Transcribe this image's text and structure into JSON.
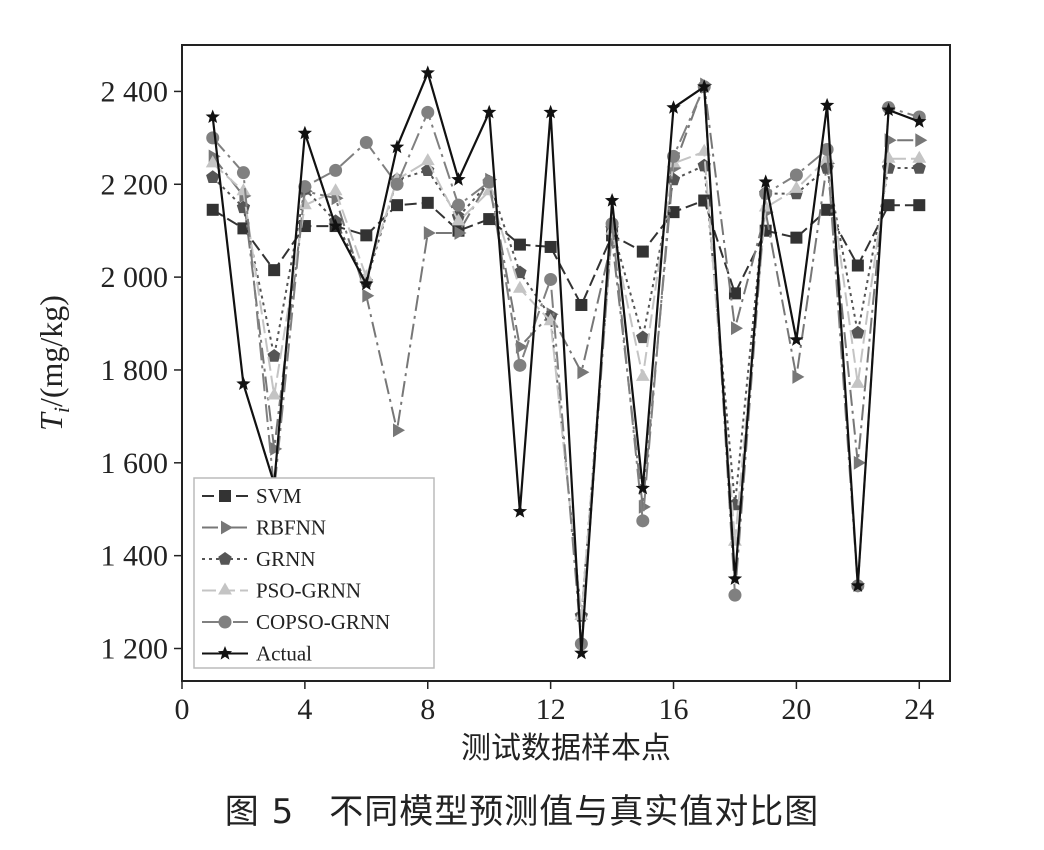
{
  "caption": "图 5　不同模型预测值与真实值对比图",
  "chart_data": {
    "type": "line",
    "title": "",
    "xlabel": "测试数据样本点",
    "ylabel": "Ti/(mg/kg)",
    "ylabel_main": "T",
    "ylabel_sub": "i",
    "ylabel_rest": "/(mg/kg)",
    "xlim": [
      0,
      25
    ],
    "ylim": [
      1130,
      2500
    ],
    "x_ticks": [
      0,
      4,
      8,
      12,
      16,
      20,
      24
    ],
    "x_tick_labels": [
      "0",
      "4",
      "8",
      "12",
      "16",
      "20",
      "24"
    ],
    "y_ticks": [
      1200,
      1400,
      1600,
      1800,
      2000,
      2200,
      2400
    ],
    "y_tick_labels": [
      "1 200",
      "1 400",
      "1 600",
      "1 800",
      "2 000",
      "2 200",
      "2 400"
    ],
    "legend_position": "bottom-left",
    "x": [
      1,
      2,
      3,
      4,
      5,
      6,
      7,
      8,
      9,
      10,
      11,
      12,
      13,
      14,
      15,
      16,
      17,
      18,
      19,
      20,
      21,
      22,
      23,
      24
    ],
    "series": [
      {
        "name": "SVM",
        "marker": "square",
        "dash": "12,5",
        "color": "#333333",
        "values": [
          2145,
          2105,
          2015,
          2110,
          2110,
          2090,
          2155,
          2160,
          2100,
          2125,
          2070,
          2065,
          1940,
          2090,
          2055,
          2140,
          2165,
          1965,
          2100,
          2085,
          2145,
          2025,
          2155,
          2155
        ]
      },
      {
        "name": "RBFNN",
        "marker": "triangle-right",
        "dash": "16,5,3,5",
        "color": "#777777",
        "values": [
          2260,
          2175,
          1630,
          2185,
          2170,
          1960,
          1670,
          2095,
          2095,
          2210,
          1850,
          1920,
          1795,
          2080,
          1505,
          2235,
          2415,
          1890,
          2140,
          1785,
          2245,
          1600,
          2295,
          2295
        ]
      },
      {
        "name": "GRNN",
        "marker": "pentagon",
        "dash": "3,4",
        "color": "#555555",
        "values": [
          2215,
          2150,
          1830,
          2190,
          2120,
          1990,
          2210,
          2230,
          2130,
          2205,
          2010,
          1915,
          1270,
          2105,
          1870,
          2210,
          2240,
          1510,
          2180,
          2180,
          2235,
          1880,
          2235,
          2235
        ]
      },
      {
        "name": "PSO-GRNN",
        "marker": "triangle-up",
        "dash": "14,5",
        "color": "#c4c4c4",
        "values": [
          2245,
          2185,
          1745,
          2155,
          2185,
          2000,
          2210,
          2250,
          2120,
          2185,
          1975,
          1905,
          1270,
          2100,
          1785,
          2245,
          2270,
          1430,
          2150,
          2190,
          2255,
          1770,
          2255,
          2255
        ]
      },
      {
        "name": "COPSO-GRNN",
        "marker": "circle",
        "dash": "18,5,3,5",
        "color": "#808080",
        "values": [
          2300,
          2225,
          1540,
          2195,
          2230,
          2290,
          2200,
          2355,
          2155,
          2205,
          1810,
          1995,
          1210,
          2115,
          1475,
          2260,
          2410,
          1315,
          2180,
          2220,
          2275,
          1335,
          2365,
          2345
        ]
      },
      {
        "name": "Actual",
        "marker": "star",
        "dash": "",
        "color": "#111111",
        "values": [
          2345,
          1770,
          1555,
          2310,
          2110,
          1985,
          2280,
          2440,
          2210,
          2355,
          1495,
          2355,
          1190,
          2165,
          1545,
          2365,
          2410,
          1350,
          2205,
          1865,
          2370,
          1335,
          2360,
          2335
        ]
      }
    ]
  }
}
